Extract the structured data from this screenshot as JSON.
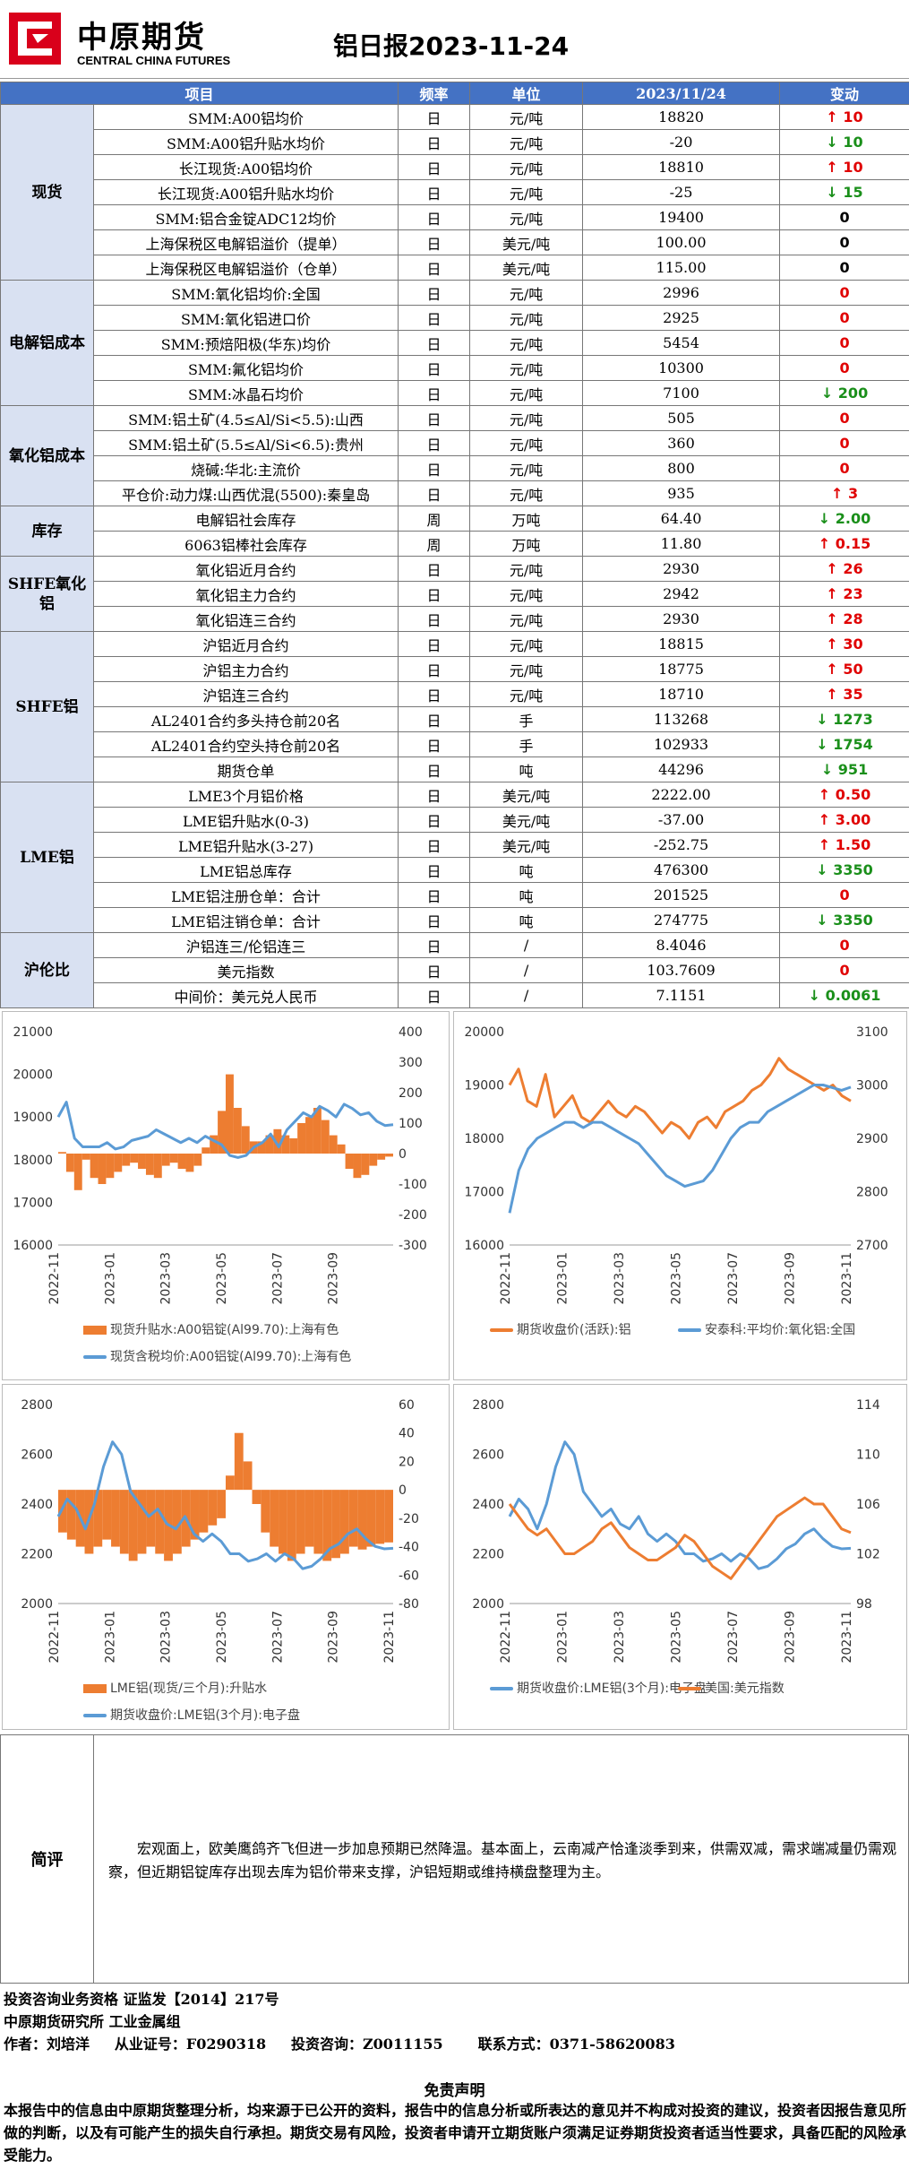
{
  "header": {
    "logo_cn": "中原期货",
    "logo_en": "CENTRAL CHINA FUTURES",
    "title": "铝日报2023-11-24",
    "logo_color": "#d9001b"
  },
  "table": {
    "headers": [
      "项目",
      "频率",
      "单位",
      "2023/11/24",
      "变动"
    ],
    "groups": [
      {
        "name": "现货",
        "rows": [
          {
            "item": "SMM:A00铝均价",
            "freq": "日",
            "unit": "元/吨",
            "value": "18820",
            "change": "10",
            "dir": "up"
          },
          {
            "item": "SMM:A00铝升贴水均价",
            "freq": "日",
            "unit": "元/吨",
            "value": "-20",
            "change": "10",
            "dir": "down"
          },
          {
            "item": "长江现货:A00铝均价",
            "freq": "日",
            "unit": "元/吨",
            "value": "18810",
            "change": "10",
            "dir": "up"
          },
          {
            "item": "长江现货:A00铝升贴水均价",
            "freq": "日",
            "unit": "元/吨",
            "value": "-25",
            "change": "15",
            "dir": "down"
          },
          {
            "item": "SMM:铝合金锭ADC12均价",
            "freq": "日",
            "unit": "元/吨",
            "value": "19400",
            "change": "0",
            "dir": "flat"
          },
          {
            "item": "上海保税区电解铝溢价（提单）",
            "freq": "日",
            "unit": "美元/吨",
            "value": "100.00",
            "change": "0",
            "dir": "flat"
          },
          {
            "item": "上海保税区电解铝溢价（仓单）",
            "freq": "日",
            "unit": "美元/吨",
            "value": "115.00",
            "change": "0",
            "dir": "flat"
          }
        ]
      },
      {
        "name": "电解铝成本",
        "rows": [
          {
            "item": "SMM:氧化铝均价:全国",
            "freq": "日",
            "unit": "元/吨",
            "value": "2996",
            "change": "0",
            "dir": "zero"
          },
          {
            "item": "SMM:氧化铝进口价",
            "freq": "日",
            "unit": "元/吨",
            "value": "2925",
            "change": "0",
            "dir": "zero"
          },
          {
            "item": "SMM:预焙阳极(华东)均价",
            "freq": "日",
            "unit": "元/吨",
            "value": "5454",
            "change": "0",
            "dir": "zero"
          },
          {
            "item": "SMM:氟化铝均价",
            "freq": "日",
            "unit": "元/吨",
            "value": "10300",
            "change": "0",
            "dir": "zero"
          },
          {
            "item": "SMM:冰晶石均价",
            "freq": "日",
            "unit": "元/吨",
            "value": "7100",
            "change": "200",
            "dir": "down"
          }
        ]
      },
      {
        "name": "氧化铝成本",
        "rows": [
          {
            "item": "SMM:铝土矿(4.5≤Al/Si<5.5):山西",
            "freq": "日",
            "unit": "元/吨",
            "value": "505",
            "change": "0",
            "dir": "zero"
          },
          {
            "item": "SMM:铝土矿(5.5≤Al/Si<6.5):贵州",
            "freq": "日",
            "unit": "元/吨",
            "value": "360",
            "change": "0",
            "dir": "zero"
          },
          {
            "item": "烧碱:华北:主流价",
            "freq": "日",
            "unit": "元/吨",
            "value": "800",
            "change": "0",
            "dir": "zero"
          },
          {
            "item": "平仓价:动力煤:山西优混(5500):秦皇岛",
            "freq": "日",
            "unit": "元/吨",
            "value": "935",
            "change": "3",
            "dir": "up"
          }
        ]
      },
      {
        "name": "库存",
        "rows": [
          {
            "item": "电解铝社会库存",
            "freq": "周",
            "unit": "万吨",
            "value": "64.40",
            "change": "2.00",
            "dir": "down"
          },
          {
            "item": "6063铝棒社会库存",
            "freq": "周",
            "unit": "万吨",
            "value": "11.80",
            "change": "0.15",
            "dir": "up"
          }
        ]
      },
      {
        "name": "SHFE氧化铝",
        "rows": [
          {
            "item": "氧化铝近月合约",
            "freq": "日",
            "unit": "元/吨",
            "value": "2930",
            "change": "26",
            "dir": "up"
          },
          {
            "item": "氧化铝主力合约",
            "freq": "日",
            "unit": "元/吨",
            "value": "2942",
            "change": "23",
            "dir": "up"
          },
          {
            "item": "氧化铝连三合约",
            "freq": "日",
            "unit": "元/吨",
            "value": "2930",
            "change": "28",
            "dir": "up"
          }
        ]
      },
      {
        "name": "SHFE铝",
        "rows": [
          {
            "item": "沪铝近月合约",
            "freq": "日",
            "unit": "元/吨",
            "value": "18815",
            "change": "30",
            "dir": "up"
          },
          {
            "item": "沪铝主力合约",
            "freq": "日",
            "unit": "元/吨",
            "value": "18775",
            "change": "50",
            "dir": "up"
          },
          {
            "item": "沪铝连三合约",
            "freq": "日",
            "unit": "元/吨",
            "value": "18710",
            "change": "35",
            "dir": "up"
          },
          {
            "item": "AL2401合约多头持仓前20名",
            "freq": "日",
            "unit": "手",
            "value": "113268",
            "change": "1273",
            "dir": "down"
          },
          {
            "item": "AL2401合约空头持仓前20名",
            "freq": "日",
            "unit": "手",
            "value": "102933",
            "change": "1754",
            "dir": "down"
          },
          {
            "item": "期货仓单",
            "freq": "日",
            "unit": "吨",
            "value": "44296",
            "change": "951",
            "dir": "down"
          }
        ]
      },
      {
        "name": "LME铝",
        "rows": [
          {
            "item": "LME3个月铝价格",
            "freq": "日",
            "unit": "美元/吨",
            "value": "2222.00",
            "change": "0.50",
            "dir": "up"
          },
          {
            "item": "LME铝升贴水(0-3)",
            "freq": "日",
            "unit": "美元/吨",
            "value": "-37.00",
            "change": "3.00",
            "dir": "up"
          },
          {
            "item": "LME铝升贴水(3-27)",
            "freq": "日",
            "unit": "美元/吨",
            "value": "-252.75",
            "change": "1.50",
            "dir": "up"
          },
          {
            "item": "LME铝总库存",
            "freq": "日",
            "unit": "吨",
            "value": "476300",
            "change": "3350",
            "dir": "down"
          },
          {
            "item": "LME铝注册仓单：合计",
            "freq": "日",
            "unit": "吨",
            "value": "201525",
            "change": "0",
            "dir": "zero"
          },
          {
            "item": "LME铝注销仓单：合计",
            "freq": "日",
            "unit": "吨",
            "value": "274775",
            "change": "3350",
            "dir": "down"
          }
        ]
      },
      {
        "name": "沪伦比",
        "rows": [
          {
            "item": "沪铝连三/伦铝连三",
            "freq": "日",
            "unit": "/",
            "value": "8.4046",
            "change": "0",
            "dir": "zero"
          },
          {
            "item": "美元指数",
            "freq": "日",
            "unit": "/",
            "value": "103.7609",
            "change": "0",
            "dir": "zero"
          },
          {
            "item": "中间价：美元兑人民币",
            "freq": "日",
            "unit": "/",
            "value": "7.1151",
            "change": "0.0061",
            "dir": "down"
          }
        ]
      }
    ]
  },
  "chart_data": [
    {
      "type": "bar+line",
      "x_ticks": [
        "2022-11",
        "2023-01",
        "2023-03",
        "2023-05",
        "2023-07",
        "2023-09"
      ],
      "y_left": {
        "min": 16000,
        "max": 21000,
        "ticks": [
          "21000",
          "20000",
          "19000",
          "18000",
          "17000",
          "16000"
        ]
      },
      "y_right": {
        "min": -300,
        "max": 400,
        "ticks": [
          "400",
          "300",
          "200",
          "100",
          "0",
          "-100",
          "-200",
          "-300"
        ]
      },
      "series": [
        {
          "name": "现货升贴水:A00铝锭(Al99.70):上海有色",
          "kind": "bar",
          "axis": "right",
          "color": "#ed7d31",
          "values": [
            5,
            -60,
            -120,
            -20,
            -80,
            -100,
            -80,
            -60,
            -40,
            -30,
            -50,
            -70,
            -80,
            -40,
            -30,
            -50,
            -60,
            -40,
            20,
            60,
            140,
            260,
            150,
            90,
            40,
            40,
            60,
            80,
            60,
            50,
            100,
            120,
            150,
            110,
            60,
            30,
            -50,
            -80,
            -70,
            -40,
            -20,
            -10
          ]
        },
        {
          "name": "现货含税均价:A00铝锭(Al99.70):上海有色",
          "kind": "line",
          "axis": "left",
          "color": "#5b9bd5",
          "values": [
            19000,
            19350,
            18500,
            18300,
            18300,
            18300,
            18400,
            18250,
            18300,
            18450,
            18500,
            18550,
            18700,
            18600,
            18500,
            18400,
            18500,
            18400,
            18550,
            18450,
            18350,
            18100,
            18050,
            18100,
            18300,
            18400,
            18600,
            18300,
            18700,
            18900,
            19100,
            19000,
            19250,
            19150,
            19000,
            19300,
            19200,
            19050,
            19100,
            18900,
            18800,
            18820
          ]
        }
      ]
    },
    {
      "type": "line",
      "x_ticks": [
        "2022-11",
        "2023-01",
        "2023-03",
        "2023-05",
        "2023-07",
        "2023-09",
        "2023-11"
      ],
      "y_left": {
        "min": 16000,
        "max": 20000,
        "ticks": [
          "20000",
          "19000",
          "18000",
          "17000",
          "16000"
        ]
      },
      "y_right": {
        "min": 2700,
        "max": 3100,
        "ticks": [
          "3100",
          "3000",
          "2900",
          "2800",
          "2700"
        ]
      },
      "series": [
        {
          "name": "期货收盘价(活跃):铝",
          "axis": "left",
          "color": "#ed7d31",
          "values": [
            19000,
            19300,
            18700,
            18600,
            19200,
            18400,
            18600,
            18800,
            18400,
            18300,
            18500,
            18700,
            18500,
            18400,
            18600,
            18500,
            18300,
            18100,
            18300,
            18200,
            18000,
            18300,
            18400,
            18200,
            18500,
            18600,
            18700,
            18900,
            19000,
            19200,
            19500,
            19300,
            19200,
            19100,
            19000,
            18900,
            19000,
            18800,
            18700
          ]
        },
        {
          "name": "安泰科:平均价:氧化铝:全国",
          "axis": "right",
          "color": "#5b9bd5",
          "values": [
            2760,
            2840,
            2880,
            2900,
            2910,
            2920,
            2930,
            2930,
            2920,
            2930,
            2930,
            2920,
            2910,
            2900,
            2890,
            2870,
            2850,
            2830,
            2820,
            2810,
            2815,
            2820,
            2840,
            2870,
            2900,
            2920,
            2930,
            2930,
            2950,
            2960,
            2970,
            2980,
            2990,
            3000,
            3000,
            2995,
            2990,
            2996
          ]
        }
      ]
    },
    {
      "type": "bar+line",
      "x_ticks": [
        "2022-11",
        "2023-01",
        "2023-03",
        "2023-05",
        "2023-07",
        "2023-09",
        "2023-11"
      ],
      "y_left": {
        "min": 2000,
        "max": 2800,
        "ticks": [
          "2800",
          "2600",
          "2400",
          "2200",
          "2000"
        ]
      },
      "y_right": {
        "min": -80,
        "max": 60,
        "ticks": [
          "60",
          "40",
          "20",
          "0",
          "-20",
          "-40",
          "-60",
          "-80"
        ]
      },
      "series": [
        {
          "name": "LME铝(现货/三个月):升贴水",
          "kind": "bar",
          "axis": "right",
          "color": "#ed7d31",
          "values": [
            -30,
            -35,
            -40,
            -45,
            -40,
            -35,
            -40,
            -45,
            -50,
            -45,
            -40,
            -45,
            -50,
            -45,
            -40,
            -35,
            -30,
            -25,
            -20,
            10,
            40,
            20,
            -10,
            -30,
            -40,
            -45,
            -50,
            -45,
            -40,
            -45,
            -50,
            -48,
            -45,
            -40,
            -42,
            -40,
            -38,
            -37
          ]
        },
        {
          "name": "期货收盘价:LME铝(3个月):电子盘",
          "kind": "line",
          "axis": "left",
          "color": "#5b9bd5",
          "values": [
            2350,
            2420,
            2380,
            2300,
            2400,
            2550,
            2650,
            2600,
            2450,
            2400,
            2350,
            2380,
            2320,
            2300,
            2350,
            2280,
            2250,
            2280,
            2250,
            2200,
            2200,
            2170,
            2180,
            2200,
            2170,
            2200,
            2180,
            2140,
            2150,
            2180,
            2220,
            2240,
            2280,
            2300,
            2260,
            2230,
            2220,
            2222
          ]
        }
      ]
    },
    {
      "type": "line",
      "x_ticks": [
        "2022-11",
        "2023-01",
        "2023-03",
        "2023-05",
        "2023-07",
        "2023-09",
        "2023-11"
      ],
      "y_left": {
        "min": 2000,
        "max": 2800,
        "ticks": [
          "2800",
          "2600",
          "2400",
          "2200",
          "2000"
        ]
      },
      "y_right": {
        "min": 98,
        "max": 114,
        "ticks": [
          "114",
          "110",
          "106",
          "102",
          "98"
        ]
      },
      "series": [
        {
          "name": "期货收盘价:LME铝(3个月):电子盘",
          "axis": "left",
          "color": "#5b9bd5",
          "values": [
            2350,
            2420,
            2380,
            2300,
            2400,
            2550,
            2650,
            2600,
            2450,
            2400,
            2350,
            2380,
            2320,
            2300,
            2350,
            2280,
            2250,
            2280,
            2250,
            2200,
            2200,
            2170,
            2180,
            2200,
            2170,
            2200,
            2180,
            2140,
            2150,
            2180,
            2220,
            2240,
            2280,
            2300,
            2260,
            2230,
            2220,
            2222
          ]
        },
        {
          "name": "美国:美元指数",
          "axis": "right",
          "color": "#ed7d31",
          "values": [
            106,
            105,
            104,
            103.5,
            104,
            103,
            102,
            102,
            102.5,
            103,
            104,
            104.5,
            103.5,
            102.5,
            102,
            101.5,
            101.5,
            102,
            102.5,
            103.5,
            103,
            102,
            101,
            100.5,
            100,
            101,
            102,
            103,
            104,
            105,
            105.5,
            106,
            106.5,
            106,
            106,
            105,
            104,
            103.7
          ]
        }
      ]
    }
  ],
  "comment": {
    "label": "简评",
    "text": "宏观面上，欧美鹰鸽齐飞但进一步加息预期已然降温。基本面上，云南减产恰逢淡季到来，供需双减，需求端减量仍需观察，但近期铝锭库存出现去库为铝价带来支撑，沪铝短期或维持横盘整理为主。"
  },
  "footer": {
    "line1": "投资咨询业务资格   证监发【2014】217号",
    "line2": "中原期货研究所    工业金属组",
    "line3": "作者：刘培洋     从业证号：F0290318     投资咨询：Z0011155       联系方式：0371-58620083"
  },
  "disclaimer": {
    "title": "免责声明",
    "text": "本报告中的信息由中原期货整理分析，均来源于已公开的资料，报告中的信息分析或所表达的意见并不构成对投资的建议，投资者因报告意见所做的判断，以及有可能产生的损失自行承担。期货交易有风险，投资者申请开立期货账户须满足证券期货投资者适当性要求，具备匹配的风险承受能力。"
  }
}
